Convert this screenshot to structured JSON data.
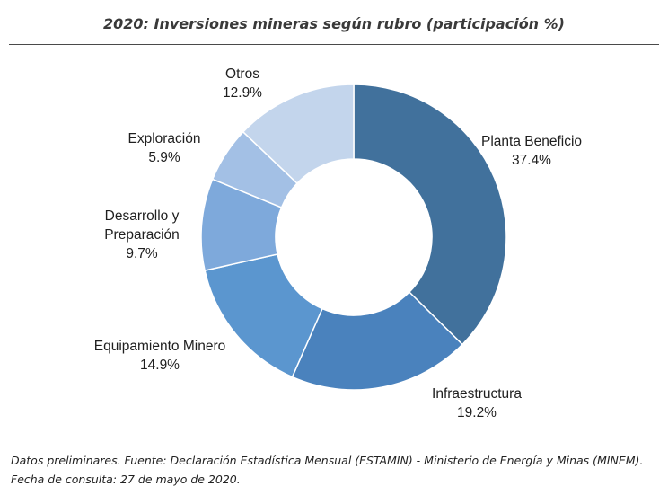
{
  "title": "2020: Inversiones mineras según rubro (participación %)",
  "chart_data": {
    "type": "pie",
    "donut": true,
    "title": "2020: Inversiones mineras según rubro (participación %)",
    "unit": "%",
    "slices": [
      {
        "name": "Planta Beneficio",
        "value": 37.4,
        "label_lines": [
          "Planta Beneficio"
        ],
        "value_label": "37.4%",
        "color": "#41719c"
      },
      {
        "name": "Infraestructura",
        "value": 19.2,
        "label_lines": [
          "Infraestructura"
        ],
        "value_label": "19.2%",
        "color": "#4a82bd"
      },
      {
        "name": "Equipamiento Minero",
        "value": 14.9,
        "label_lines": [
          "Equipamiento Minero"
        ],
        "value_label": "14.9%",
        "color": "#5b96cf"
      },
      {
        "name": "Desarrollo y Preparación",
        "value": 9.7,
        "label_lines": [
          "Desarrollo y",
          "Preparación"
        ],
        "value_label": "9.7%",
        "color": "#7ea9db"
      },
      {
        "name": "Exploración",
        "value": 5.9,
        "label_lines": [
          "Exploración"
        ],
        "value_label": "5.9%",
        "color": "#a3c0e5"
      },
      {
        "name": "Otros",
        "value": 12.9,
        "label_lines": [
          "Otros"
        ],
        "value_label": "12.9%",
        "color": "#c3d5ec"
      }
    ]
  },
  "footer": {
    "line1": "Datos preliminares. Fuente: Declaración Estadística Mensual (ESTAMIN) - Ministerio de Energía y Minas (MINEM).",
    "line2": " Fecha de consulta: 27 de mayo de 2020."
  }
}
